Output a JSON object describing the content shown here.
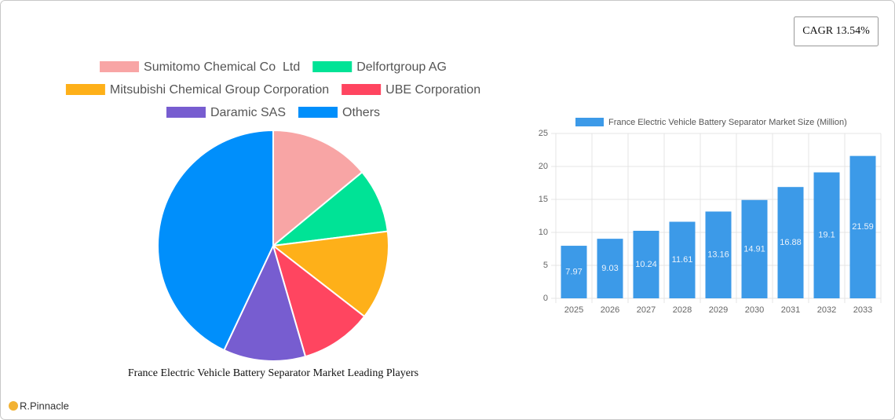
{
  "cagr_badge": "CAGR 13.54%",
  "brand": "R.Pinnacle",
  "chart_data": [
    {
      "type": "pie",
      "title": "France Electric Vehicle Battery Separator Market Leading Players",
      "categories": [
        "Sumitomo Chemical Co  Ltd",
        "Delfortgroup AG",
        "Mitsubishi Chemical Group Corporation",
        "UBE Corporation",
        "Daramic SAS",
        "Others"
      ],
      "values": [
        14,
        9,
        12.5,
        10,
        11.5,
        43
      ],
      "colors": [
        "#f8a5a5",
        "#00e396",
        "#feb019",
        "#ff4560",
        "#775dd0",
        "#008ffb"
      ]
    },
    {
      "type": "bar",
      "categories": [
        "2025",
        "2026",
        "2027",
        "2028",
        "2029",
        "2030",
        "2031",
        "2032",
        "2033"
      ],
      "series": [
        {
          "name": "France Electric Vehicle Battery Separator Market Size (Million)",
          "color": "#3c9ae8",
          "values": [
            7.97,
            9.03,
            10.24,
            11.61,
            13.16,
            14.91,
            16.88,
            19.1,
            21.59
          ]
        }
      ],
      "ylim": [
        0,
        25
      ],
      "yticks": [
        0,
        5,
        10,
        15,
        20,
        25
      ],
      "grid": true
    }
  ]
}
